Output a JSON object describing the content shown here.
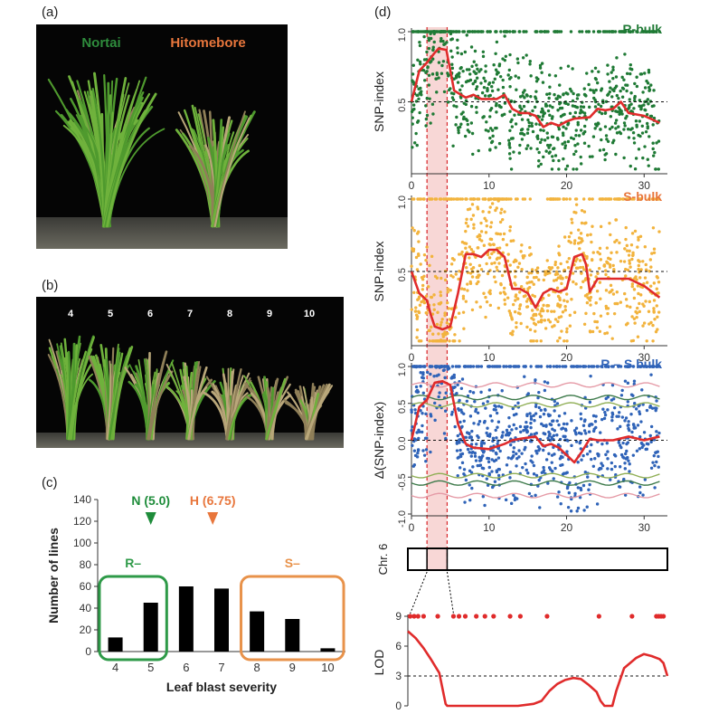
{
  "panel_labels": {
    "a": "(a)",
    "b": "(b)",
    "c": "(c)",
    "d": "(d)"
  },
  "photo_a": {
    "left_label": "Nortai",
    "right_label": "Hitomebore",
    "left_color": "#2e8b3c",
    "right_color": "#e8763c"
  },
  "photo_b": {
    "severity_labels": [
      "4",
      "5",
      "6",
      "7",
      "8",
      "9",
      "10"
    ]
  },
  "chart_data": [
    {
      "id": "c",
      "type": "bar",
      "categories": [
        "4",
        "5",
        "6",
        "7",
        "8",
        "9",
        "10"
      ],
      "values": [
        13,
        45,
        60,
        58,
        37,
        30,
        3
      ],
      "xlabel": "Leaf blast severity",
      "ylabel": "Number of lines",
      "ylim": [
        0,
        140
      ],
      "yticks": [
        "0",
        "20",
        "40",
        "60",
        "80",
        "100",
        "120",
        "140"
      ],
      "markers": [
        {
          "label": "N (5.0)",
          "x": 5.0,
          "color": "#1e8c3a"
        },
        {
          "label": "H (6.75)",
          "x": 6.75,
          "color": "#e8763c"
        }
      ],
      "groups": [
        {
          "label": "R–",
          "categories": [
            "4",
            "5"
          ],
          "color": "#2e9a48"
        },
        {
          "label": "S–",
          "categories": [
            "8",
            "9",
            "10"
          ],
          "color": "#e8924a"
        }
      ]
    },
    {
      "id": "d-r",
      "type": "scatter",
      "series_label": "R-bulk",
      "ylabel": "SNP-index",
      "xlim": [
        0,
        32
      ],
      "ylim": [
        0,
        1.0
      ],
      "xticks": [
        "0",
        "10",
        "20",
        "30"
      ],
      "yticks": [
        "0.5",
        "1.0"
      ],
      "point_color": "#1f7a35",
      "label_color": "#1f7a35",
      "threshold": 0.5,
      "line": [
        [
          0,
          0.5
        ],
        [
          1,
          0.72
        ],
        [
          2,
          0.78
        ],
        [
          3,
          0.85
        ],
        [
          3.5,
          0.88
        ],
        [
          4.5,
          0.87
        ],
        [
          5.5,
          0.58
        ],
        [
          7,
          0.53
        ],
        [
          8,
          0.55
        ],
        [
          9,
          0.52
        ],
        [
          11,
          0.52
        ],
        [
          12,
          0.55
        ],
        [
          13,
          0.45
        ],
        [
          14,
          0.42
        ],
        [
          15,
          0.42
        ],
        [
          16,
          0.4
        ],
        [
          17,
          0.32
        ],
        [
          18,
          0.35
        ],
        [
          19,
          0.33
        ],
        [
          20,
          0.36
        ],
        [
          21,
          0.38
        ],
        [
          23,
          0.39
        ],
        [
          24,
          0.45
        ],
        [
          25,
          0.44
        ],
        [
          26,
          0.45
        ],
        [
          27,
          0.5
        ],
        [
          28,
          0.42
        ],
        [
          30,
          0.4
        ],
        [
          32,
          0.35
        ]
      ]
    },
    {
      "id": "d-s",
      "type": "scatter",
      "series_label": "S-bulk",
      "ylabel": "SNP-index",
      "xlim": [
        0,
        32
      ],
      "ylim": [
        0,
        1.0
      ],
      "xticks": [
        "0",
        "10",
        "20",
        "30"
      ],
      "yticks": [
        "0.5",
        "1.0"
      ],
      "point_color": "#f2b33d",
      "label_color": "#e8763c",
      "threshold": 0.5,
      "line": [
        [
          0,
          0.5
        ],
        [
          1,
          0.35
        ],
        [
          2,
          0.3
        ],
        [
          2.5,
          0.2
        ],
        [
          3,
          0.12
        ],
        [
          4,
          0.1
        ],
        [
          5,
          0.12
        ],
        [
          6,
          0.35
        ],
        [
          7,
          0.62
        ],
        [
          8,
          0.62
        ],
        [
          9,
          0.6
        ],
        [
          10,
          0.65
        ],
        [
          11,
          0.65
        ],
        [
          12,
          0.6
        ],
        [
          13,
          0.38
        ],
        [
          14,
          0.38
        ],
        [
          15,
          0.35
        ],
        [
          16,
          0.25
        ],
        [
          17,
          0.35
        ],
        [
          18,
          0.38
        ],
        [
          19,
          0.36
        ],
        [
          20,
          0.38
        ],
        [
          21,
          0.6
        ],
        [
          22,
          0.62
        ],
        [
          22.5,
          0.55
        ],
        [
          23,
          0.36
        ],
        [
          24,
          0.45
        ],
        [
          26,
          0.45
        ],
        [
          28,
          0.45
        ],
        [
          30,
          0.4
        ],
        [
          32,
          0.32
        ]
      ]
    },
    {
      "id": "d-rs",
      "type": "scatter",
      "series_label": "R – S bulk",
      "ylabel": "Δ(SNP-index)",
      "xlim": [
        0,
        32
      ],
      "ylim": [
        -1.0,
        1.0
      ],
      "xticks": [
        "0",
        "10",
        "20",
        "30"
      ],
      "yticks": [
        "-1.0",
        "-0.5",
        "0.0",
        "0.5",
        "1.0"
      ],
      "point_color": "#2f63b8",
      "label_color": "#2f63b8",
      "threshold": 0.0,
      "line": [
        [
          0,
          0.0
        ],
        [
          1,
          0.45
        ],
        [
          2,
          0.55
        ],
        [
          3,
          0.78
        ],
        [
          4,
          0.8
        ],
        [
          5,
          0.75
        ],
        [
          6,
          0.22
        ],
        [
          7,
          -0.05
        ],
        [
          8,
          -0.1
        ],
        [
          10,
          -0.12
        ],
        [
          12,
          -0.05
        ],
        [
          13,
          0.0
        ],
        [
          14,
          0.02
        ],
        [
          16,
          0.05
        ],
        [
          17,
          -0.08
        ],
        [
          18,
          -0.05
        ],
        [
          19,
          -0.1
        ],
        [
          20,
          -0.2
        ],
        [
          21,
          -0.3
        ],
        [
          22,
          -0.15
        ],
        [
          23,
          0.02
        ],
        [
          24,
          0.0
        ],
        [
          26,
          0.0
        ],
        [
          28,
          0.05
        ],
        [
          30,
          0.0
        ],
        [
          32,
          0.05
        ]
      ]
    },
    {
      "id": "d-lod",
      "type": "line",
      "chr_label": "Chr. 6",
      "ylabel": "LOD",
      "xlim": [
        0,
        32
      ],
      "ylim": [
        0,
        9
      ],
      "yticks": [
        "0",
        "3",
        "6",
        "9"
      ],
      "threshold": 3,
      "marker_positions": [
        0.3,
        0.8,
        1.3,
        2.0,
        3.8,
        5.8,
        6.5,
        7.3,
        8.7,
        9.8,
        10.9,
        13.0,
        14.3,
        17.7,
        24.3,
        28.5,
        31.6,
        31.9,
        32.2,
        32.5
      ],
      "line": [
        [
          0,
          7.5
        ],
        [
          1,
          6.8
        ],
        [
          2,
          5.8
        ],
        [
          3,
          4.6
        ],
        [
          4,
          3.3
        ],
        [
          4.8,
          0.2
        ],
        [
          5,
          0
        ],
        [
          14,
          0
        ],
        [
          16,
          0.2
        ],
        [
          17,
          0.5
        ],
        [
          18,
          1.5
        ],
        [
          19,
          2.2
        ],
        [
          20,
          2.6
        ],
        [
          21,
          2.8
        ],
        [
          22,
          2.7
        ],
        [
          23,
          2.1
        ],
        [
          24,
          1.4
        ],
        [
          24.5,
          0.5
        ],
        [
          25,
          0
        ],
        [
          26,
          0
        ],
        [
          26.5,
          1.5
        ],
        [
          27.5,
          3.8
        ],
        [
          29,
          4.8
        ],
        [
          30,
          5.2
        ],
        [
          31,
          5.0
        ],
        [
          32,
          4.7
        ],
        [
          32.5,
          4.3
        ],
        [
          33,
          3.0
        ]
      ]
    }
  ]
}
